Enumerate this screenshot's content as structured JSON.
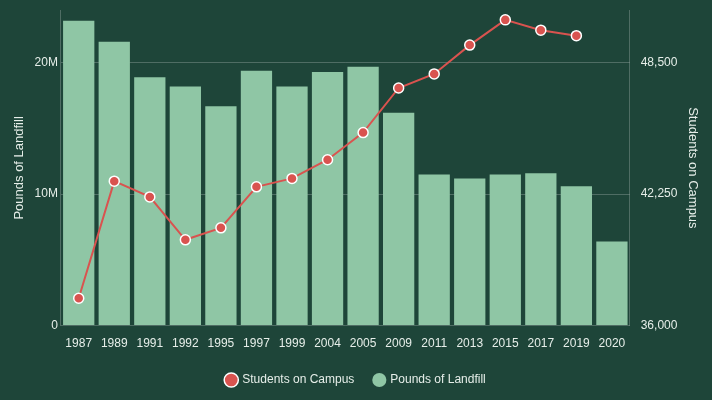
{
  "chart_data": {
    "type": "bar",
    "categories": [
      "1987",
      "1989",
      "1991",
      "1992",
      "1995",
      "1997",
      "1999",
      "2004",
      "2005",
      "2009",
      "2011",
      "2013",
      "2015",
      "2017",
      "2019",
      "2020"
    ],
    "series": [
      {
        "name": "Pounds of Landfill",
        "color": "#8fc6a5",
        "type": "bar",
        "values": [
          23200000,
          21600000,
          18900000,
          18200000,
          16700000,
          19400000,
          18200000,
          19300000,
          19700000,
          16200000,
          11500000,
          11200000,
          11500000,
          11600000,
          10600000,
          6400000
        ]
      },
      {
        "name": "Students on Campus",
        "color": "#d9534f",
        "type": "line",
        "axis": "y2",
        "marker": "circle",
        "line_style": "solid",
        "values": [
          37300,
          42870,
          42120,
          40080,
          40650,
          42600,
          43000,
          43890,
          45180,
          47300,
          47970,
          49340,
          50540,
          50050,
          49790,
          null
        ]
      }
    ],
    "y_label": "Pounds of Landfill",
    "y2_label": "Students on Campus",
    "ylim": [
      0,
      24000000
    ],
    "yticks": [
      0,
      {
        "value": 10000000,
        "label": "10M"
      },
      {
        "value": 20000000,
        "label": "20M"
      }
    ],
    "y2lim": [
      36000,
      51000
    ],
    "y2ticks": [
      {
        "value": 36000,
        "label": "36,000"
      },
      {
        "value": 42250,
        "label": "42,250"
      },
      {
        "value": 48500,
        "label": "48,500"
      }
    ],
    "grid": true,
    "legend": "bottom"
  }
}
